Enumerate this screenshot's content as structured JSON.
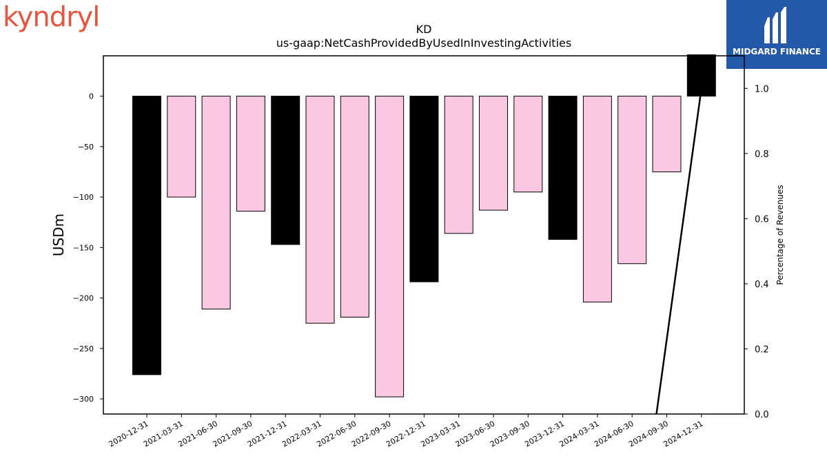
{
  "branding": {
    "left_logo": "kyndryl",
    "right_logo": "MIDGARD FINANCE",
    "left_color": "#e8553f",
    "right_bg": "#2458a8"
  },
  "chart_data": {
    "type": "bar",
    "title": "KD",
    "subtitle": "us-gaap:NetCashProvidedByUsedInInvestingActivities",
    "ylabel": "USDm",
    "y2label": "Percentage of Revenues",
    "ylim": [
      -315,
      40
    ],
    "y2lim": [
      0.0,
      1.1
    ],
    "yticks": [
      0,
      -50,
      -100,
      -150,
      -200,
      -250,
      -300
    ],
    "y2ticks": [
      0.0,
      0.2,
      0.4,
      0.6,
      0.8,
      1.0
    ],
    "categories": [
      "2020-12-31",
      "2021-03-31",
      "2021-06-30",
      "2021-09-30",
      "2021-12-31",
      "2022-03-31",
      "2022-06-30",
      "2022-09-30",
      "2022-12-31",
      "2023-03-31",
      "2023-06-30",
      "2023-09-30",
      "2023-12-31",
      "2024-03-31",
      "2024-06-30",
      "2024-09-30",
      "2024-12-31"
    ],
    "values": [
      -276,
      -100,
      -211,
      -114,
      -147,
      -225,
      -219,
      -298,
      -184,
      -136,
      -113,
      -95,
      -142,
      -204,
      -166,
      -75,
      41
    ],
    "annual": [
      true,
      false,
      false,
      false,
      true,
      false,
      false,
      false,
      true,
      false,
      false,
      false,
      true,
      false,
      false,
      false,
      true
    ],
    "colors": {
      "annual": "#000000",
      "quarter": "#fbc8e3"
    },
    "line": {
      "from": {
        "category": "2024-09-30",
        "value": 0.0
      },
      "to": {
        "category": "2024-12-31",
        "value": 1.0
      },
      "color": "#000000"
    },
    "grid": false,
    "legend": "none"
  }
}
